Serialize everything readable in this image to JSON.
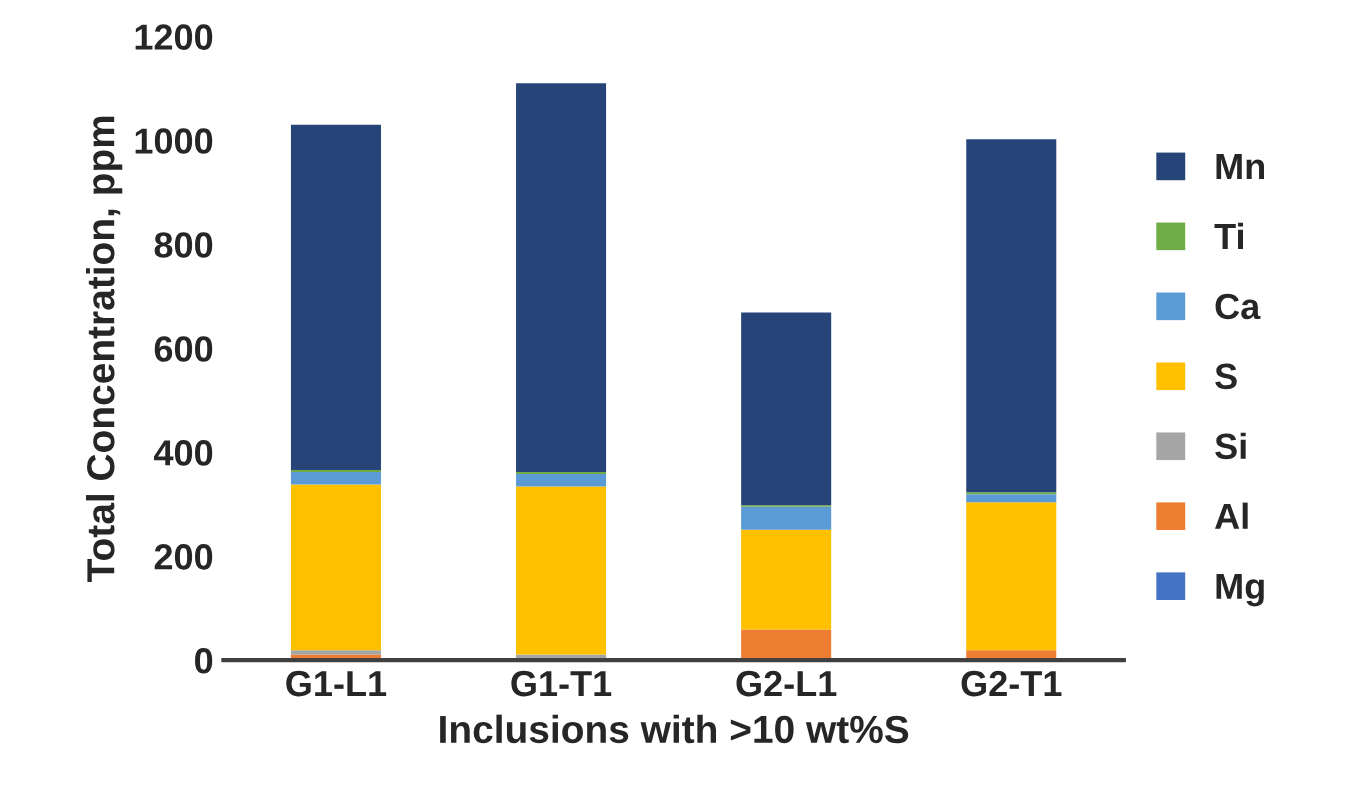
{
  "chart_data": {
    "type": "bar",
    "stacked": true,
    "xlabel": "Inclusions with >10 wt%S",
    "ylabel": "Total Concentration, ppm",
    "categories": [
      "G1-L1",
      "G1-T1",
      "G2-L1",
      "G2-T1"
    ],
    "series": [
      {
        "name": "Mg",
        "color": "#4472c4",
        "values": [
          1,
          1,
          1,
          1
        ]
      },
      {
        "name": "Al",
        "color": "#ed7d31",
        "values": [
          10,
          2,
          58,
          18
        ]
      },
      {
        "name": "Si",
        "color": "#a5a5a5",
        "values": [
          8,
          8,
          null,
          null
        ]
      },
      {
        "name": "S",
        "color": "#ffc000",
        "values": [
          319,
          323,
          192,
          285
        ]
      },
      {
        "name": "Ca",
        "color": "#5b9bd5",
        "values": [
          24,
          24,
          44,
          15
        ]
      },
      {
        "name": "Ti",
        "color": "#70ad47",
        "values": [
          4,
          4,
          3,
          4
        ]
      },
      {
        "name": "Mn",
        "color": "#264478",
        "values": [
          664,
          748,
          371,
          679
        ]
      }
    ],
    "ylim": [
      0,
      1200
    ],
    "yticks": [
      0,
      200,
      400,
      600,
      800,
      1000,
      1200
    ],
    "grid": false,
    "legend": "right"
  }
}
